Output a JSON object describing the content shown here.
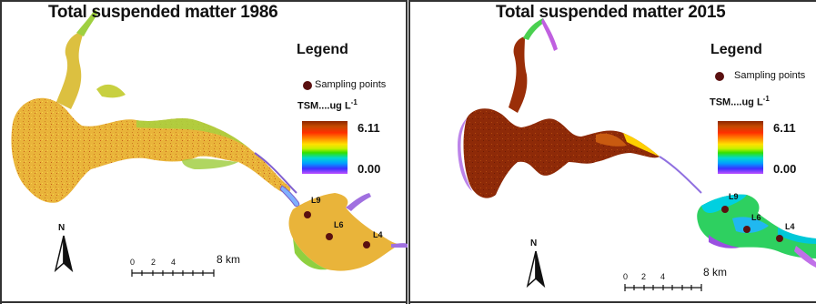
{
  "panels": [
    {
      "title": "Total suspended matter 1986",
      "legend": {
        "title": "Legend",
        "sampling_label": "Sampling points",
        "tsm_label": "TSM....ug L",
        "unit_exp": "-1",
        "max_value": "6.11",
        "min_value": "0.00"
      },
      "points": [
        "L9",
        "L6",
        "L4"
      ],
      "scale": {
        "ticks": [
          "0",
          "2",
          "4"
        ],
        "end_label": "8 km"
      },
      "north": "N"
    },
    {
      "title": "Total suspended matter 2015",
      "legend": {
        "title": "Legend",
        "sampling_label": "Sampling points",
        "tsm_label": "TSM....ug L",
        "unit_exp": "-1",
        "max_value": "6.11",
        "min_value": "0.00"
      },
      "points": [
        "L9",
        "L6",
        "L4"
      ],
      "scale": {
        "ticks": [
          "0",
          "2",
          "4"
        ],
        "end_label": "8 km"
      },
      "north": "N"
    }
  ],
  "colors": {
    "low_tsm_1986": "#e8b030",
    "high_tsm_2015": "#8b2500",
    "sampling_point": "#5a1010",
    "frame": "#333333"
  }
}
